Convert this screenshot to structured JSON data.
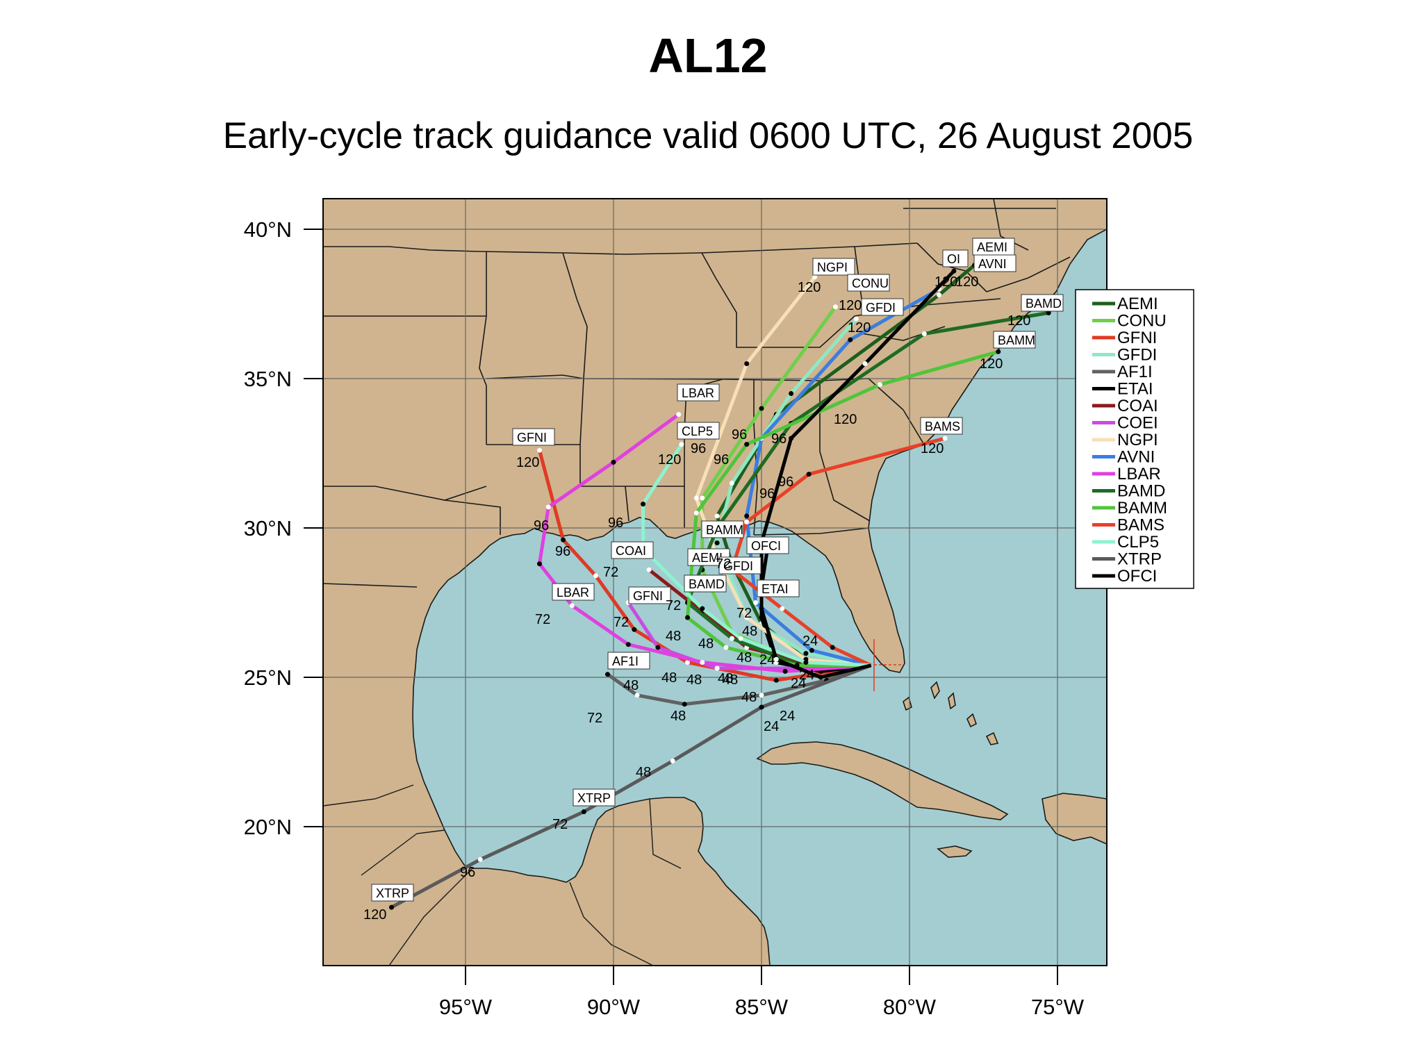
{
  "title": "AL12",
  "subtitle": "Early-cycle track guidance valid 0600 UTC, 26 August 2005",
  "colors": {
    "land": "#cfb48f",
    "ocean": "#a3cdd1",
    "border": "#1a1a1a",
    "grid": "#666666"
  },
  "lat_labels": [
    "20°N",
    "25°N",
    "30°N",
    "35°N",
    "40°N"
  ],
  "lon_labels": [
    "95°W",
    "90°W",
    "85°W",
    "80°W",
    "75°W"
  ],
  "legend": [
    {
      "name": "AEMI",
      "color": "#1d5e1d"
    },
    {
      "name": "CONU",
      "color": "#6fcf4a"
    },
    {
      "name": "GFNI",
      "color": "#e03a25"
    },
    {
      "name": "GFDI",
      "color": "#8fe8c4"
    },
    {
      "name": "AF1I",
      "color": "#616161"
    },
    {
      "name": "ETAI",
      "color": "#000000"
    },
    {
      "name": "COAI",
      "color": "#8b1a1a"
    },
    {
      "name": "COEI",
      "color": "#c94ce0"
    },
    {
      "name": "NGPI",
      "color": "#f7dfb8"
    },
    {
      "name": "AVNI",
      "color": "#3a7ee0"
    },
    {
      "name": "LBAR",
      "color": "#e040e0"
    },
    {
      "name": "BAMD",
      "color": "#1f6b23"
    },
    {
      "name": "BAMM",
      "color": "#4fc53a"
    },
    {
      "name": "BAMS",
      "color": "#e8402a"
    },
    {
      "name": "CLP5",
      "color": "#8ff2cf"
    },
    {
      "name": "XTRP",
      "color": "#5a5a5a"
    },
    {
      "name": "OFCI",
      "color": "#000000"
    }
  ],
  "track_labels": [
    "AEMI",
    "OI",
    "AVNI",
    "NGPI",
    "CONU",
    "GFDI",
    "BAMD",
    "BAMM",
    "LBAR",
    "CLP5",
    "GFNI",
    "BAMS",
    "BAMM",
    "OFCI",
    "COAI",
    "AEMI",
    "GFDI",
    "BAMD",
    "ETAI",
    "LBAR",
    "GFNI",
    "AF1I",
    "XTRP",
    "XTRP"
  ],
  "hour_labels": [
    "120",
    "96",
    "72",
    "48",
    "24"
  ],
  "chart_data": {
    "type": "track-map",
    "title": "AL12",
    "subtitle": "Early-cycle track guidance valid 0600 UTC, 26 August 2005",
    "lon_range": [
      -100,
      -73.5
    ],
    "lat_range": [
      15.5,
      41
    ],
    "initial_position": {
      "lon": -81.3,
      "lat": 25.4
    },
    "series": [
      {
        "name": "AEMI",
        "points": [
          [
            -81.3,
            25.4
          ],
          [
            -83.5,
            25.6
          ],
          [
            -85.0,
            26.8
          ],
          [
            -86.0,
            28.8
          ],
          [
            -86.5,
            30.4
          ],
          [
            -84.5,
            33.8
          ],
          [
            -79.0,
            37.8
          ],
          [
            -77.8,
            38.8
          ]
        ]
      },
      {
        "name": "CONU",
        "points": [
          [
            -81.3,
            25.4
          ],
          [
            -83.8,
            25.5
          ],
          [
            -86.0,
            26.5
          ],
          [
            -87.0,
            28.6
          ],
          [
            -87.0,
            31.0
          ],
          [
            -85.0,
            34.0
          ],
          [
            -82.5,
            37.4
          ]
        ]
      },
      {
        "name": "GFNI",
        "points": [
          [
            -81.3,
            25.4
          ],
          [
            -84.5,
            24.9
          ],
          [
            -87.5,
            25.5
          ],
          [
            -89.3,
            26.6
          ],
          [
            -90.6,
            28.4
          ],
          [
            -91.7,
            29.6
          ],
          [
            -92.5,
            32.6
          ]
        ]
      },
      {
        "name": "GFDI",
        "points": [
          [
            -81.3,
            25.4
          ],
          [
            -83.5,
            25.8
          ],
          [
            -85.5,
            27.0
          ],
          [
            -86.5,
            29.5
          ],
          [
            -86.0,
            31.5
          ],
          [
            -84.0,
            34.5
          ],
          [
            -81.8,
            37.0
          ]
        ]
      },
      {
        "name": "AF1I",
        "points": [
          [
            -81.3,
            25.4
          ],
          [
            -82.8,
            24.9
          ],
          [
            -85.0,
            24.4
          ],
          [
            -87.6,
            24.1
          ],
          [
            -89.2,
            24.4
          ],
          [
            -90.2,
            25.1
          ]
        ]
      },
      {
        "name": "ETAI",
        "points": [
          [
            -81.3,
            25.4
          ],
          [
            -83.0,
            25.2
          ],
          [
            -84.5,
            25.5
          ],
          [
            -85.0,
            27.0
          ],
          [
            -85.0,
            28.0
          ],
          [
            -84.8,
            29.3
          ]
        ]
      },
      {
        "name": "COAI",
        "points": [
          [
            -81.3,
            25.4
          ],
          [
            -83.5,
            25.5
          ],
          [
            -85.5,
            26.0
          ],
          [
            -87.0,
            27.2
          ],
          [
            -88.8,
            28.6
          ]
        ]
      },
      {
        "name": "COEI",
        "points": [
          [
            -81.3,
            25.4
          ],
          [
            -83.8,
            25.3
          ],
          [
            -86.5,
            25.3
          ],
          [
            -88.5,
            26.0
          ],
          [
            -89.5,
            27.5
          ]
        ]
      },
      {
        "name": "NGPI",
        "points": [
          [
            -81.3,
            25.4
          ],
          [
            -83.5,
            25.6
          ],
          [
            -85.5,
            27.0
          ],
          [
            -86.5,
            29.0
          ],
          [
            -87.2,
            31.0
          ],
          [
            -85.5,
            35.5
          ],
          [
            -83.2,
            38.4
          ]
        ]
      },
      {
        "name": "AVNI",
        "points": [
          [
            -81.3,
            25.4
          ],
          [
            -83.3,
            25.9
          ],
          [
            -85.2,
            27.5
          ],
          [
            -85.5,
            30.4
          ],
          [
            -85.0,
            33.0
          ],
          [
            -82.0,
            36.3
          ],
          [
            -79.0,
            38.0
          ]
        ]
      },
      {
        "name": "LBAR",
        "points": [
          [
            -81.3,
            25.4
          ],
          [
            -84.2,
            25.2
          ],
          [
            -87.0,
            25.5
          ],
          [
            -89.5,
            26.1
          ],
          [
            -91.4,
            27.4
          ],
          [
            -92.5,
            28.8
          ],
          [
            -92.2,
            30.7
          ],
          [
            -90.0,
            32.2
          ],
          [
            -87.8,
            33.8
          ]
        ]
      },
      {
        "name": "BAMD",
        "points": [
          [
            -81.3,
            25.4
          ],
          [
            -83.7,
            25.4
          ],
          [
            -86.0,
            26.3
          ],
          [
            -87.5,
            27.5
          ],
          [
            -86.5,
            30.0
          ],
          [
            -84.0,
            33.5
          ],
          [
            -79.5,
            36.5
          ],
          [
            -75.3,
            37.2
          ]
        ]
      },
      {
        "name": "BAMM",
        "points": [
          [
            -81.3,
            25.4
          ],
          [
            -83.8,
            25.4
          ],
          [
            -86.2,
            26.0
          ],
          [
            -87.5,
            27.0
          ],
          [
            -87.2,
            30.5
          ],
          [
            -85.5,
            32.8
          ],
          [
            -81.0,
            34.8
          ],
          [
            -77.0,
            35.9
          ]
        ]
      },
      {
        "name": "BAMS",
        "points": [
          [
            -81.3,
            25.4
          ],
          [
            -82.6,
            26.0
          ],
          [
            -84.3,
            27.3
          ],
          [
            -86.0,
            28.6
          ],
          [
            -85.5,
            30.2
          ],
          [
            -83.4,
            31.8
          ],
          [
            -78.8,
            33.0
          ]
        ]
      },
      {
        "name": "CLP5",
        "points": [
          [
            -81.3,
            25.4
          ],
          [
            -83.5,
            25.5
          ],
          [
            -85.7,
            26.3
          ],
          [
            -87.0,
            27.3
          ],
          [
            -89.0,
            29.3
          ],
          [
            -89.0,
            30.8
          ],
          [
            -87.7,
            32.8
          ]
        ]
      },
      {
        "name": "XTRP",
        "points": [
          [
            -81.3,
            25.4
          ],
          [
            -85.0,
            24.0
          ],
          [
            -88.0,
            22.2
          ],
          [
            -91.0,
            20.5
          ],
          [
            -94.5,
            18.9
          ],
          [
            -97.5,
            17.3
          ]
        ]
      },
      {
        "name": "OFCI",
        "points": [
          [
            -81.3,
            25.4
          ],
          [
            -83.0,
            25.0
          ],
          [
            -84.5,
            25.6
          ],
          [
            -85.0,
            27.3
          ],
          [
            -85.0,
            29.5
          ],
          [
            -84.0,
            33.0
          ],
          [
            -81.5,
            35.5
          ],
          [
            -78.5,
            38.6
          ]
        ]
      }
    ]
  }
}
